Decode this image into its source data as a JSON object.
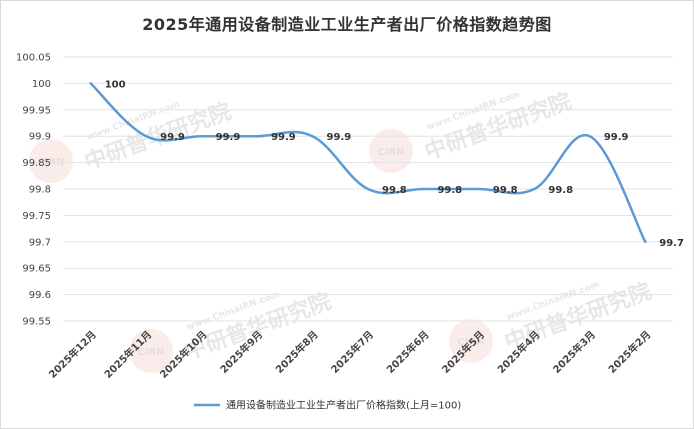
{
  "chart_data": {
    "type": "line",
    "title": "2025年通用设备制造业工业生产者出厂价格指数趋势图",
    "categories": [
      "2025年12月",
      "2025年11月",
      "2025年10月",
      "2025年9月",
      "2025年8月",
      "2025年7月",
      "2025年6月",
      "2025年5月",
      "2025年4月",
      "2025年3月",
      "2025年2月"
    ],
    "series": [
      {
        "name": "通用设备制造业工业生产者出厂价格指数(上月=100)",
        "values": [
          100,
          99.9,
          99.9,
          99.9,
          99.9,
          99.8,
          99.8,
          99.8,
          99.8,
          99.9,
          99.7
        ],
        "color": "#5b9bd5"
      }
    ],
    "data_labels": [
      "100",
      "99.9",
      "99.9",
      "99.9",
      "99.9",
      "99.8",
      "99.8",
      "99.8",
      "99.8",
      "99.9",
      "99.7"
    ],
    "y_ticks": [
      "100.05",
      "100",
      "99.95",
      "99.9",
      "99.85",
      "99.8",
      "99.75",
      "99.7",
      "99.65",
      "99.6",
      "99.55"
    ],
    "ylim": [
      99.55,
      100.05
    ],
    "grid": true,
    "legend_position": "bottom"
  },
  "watermark": {
    "text": "中研普华研究院",
    "url_text": "www.ChinaIRN.com",
    "logo": "CIRN"
  }
}
